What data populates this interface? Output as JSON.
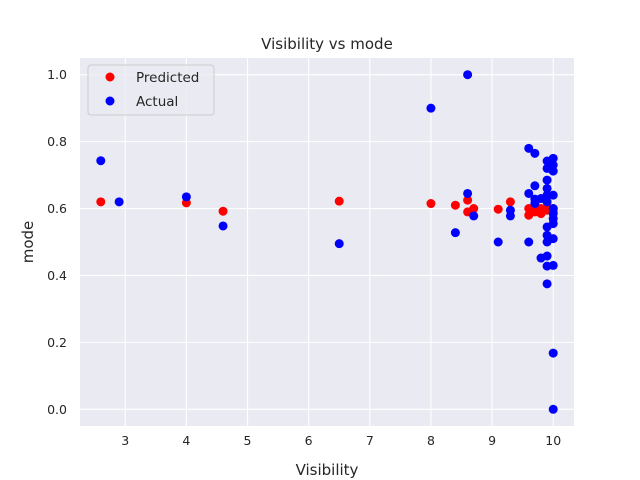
{
  "chart_data": {
    "type": "scatter",
    "title": "Visibility vs mode",
    "xlabel": "Visibility",
    "ylabel": "mode",
    "xlim": [
      2.26,
      10.34
    ],
    "ylim": [
      -0.05,
      1.05
    ],
    "xticks": [
      3,
      4,
      5,
      6,
      7,
      8,
      9,
      10
    ],
    "yticks": [
      0.0,
      0.2,
      0.4,
      0.6,
      0.8,
      1.0
    ],
    "xtick_labels": [
      "3",
      "4",
      "5",
      "6",
      "7",
      "8",
      "9",
      "10"
    ],
    "ytick_labels": [
      "0.0",
      "0.2",
      "0.4",
      "0.6",
      "0.8",
      "1.0"
    ],
    "grid": true,
    "legend_position": "top-left",
    "series": [
      {
        "name": "Predicted",
        "color": "#ff0000",
        "points": [
          [
            2.6,
            0.62
          ],
          [
            4.0,
            0.617
          ],
          [
            4.6,
            0.592
          ],
          [
            6.5,
            0.622
          ],
          [
            8.0,
            0.615
          ],
          [
            8.4,
            0.61
          ],
          [
            8.6,
            0.625
          ],
          [
            8.6,
            0.59
          ],
          [
            8.7,
            0.6
          ],
          [
            9.1,
            0.598
          ],
          [
            9.3,
            0.62
          ],
          [
            9.6,
            0.6
          ],
          [
            9.6,
            0.58
          ],
          [
            9.7,
            0.605
          ],
          [
            9.7,
            0.59
          ],
          [
            9.8,
            0.6
          ],
          [
            9.8,
            0.585
          ],
          [
            9.9,
            0.605
          ],
          [
            9.9,
            0.595
          ],
          [
            10.0,
            0.6
          ],
          [
            10.0,
            0.59
          ]
        ]
      },
      {
        "name": "Actual",
        "color": "#0000ff",
        "points": [
          [
            2.6,
            0.743
          ],
          [
            2.9,
            0.62
          ],
          [
            4.0,
            0.635
          ],
          [
            4.6,
            0.548
          ],
          [
            6.5,
            0.495
          ],
          [
            8.0,
            0.9
          ],
          [
            8.4,
            0.528
          ],
          [
            8.6,
            1.0
          ],
          [
            8.6,
            0.645
          ],
          [
            8.7,
            0.578
          ],
          [
            9.1,
            0.5
          ],
          [
            9.3,
            0.595
          ],
          [
            9.3,
            0.578
          ],
          [
            9.6,
            0.78
          ],
          [
            9.6,
            0.645
          ],
          [
            9.6,
            0.5
          ],
          [
            9.7,
            0.765
          ],
          [
            9.7,
            0.668
          ],
          [
            9.7,
            0.628
          ],
          [
            9.7,
            0.615
          ],
          [
            9.8,
            0.452
          ],
          [
            9.8,
            0.63
          ],
          [
            9.9,
            0.742
          ],
          [
            9.9,
            0.72
          ],
          [
            9.9,
            0.685
          ],
          [
            9.9,
            0.66
          ],
          [
            9.9,
            0.64
          ],
          [
            9.9,
            0.62
          ],
          [
            9.9,
            0.545
          ],
          [
            9.9,
            0.52
          ],
          [
            9.9,
            0.5
          ],
          [
            9.9,
            0.458
          ],
          [
            9.9,
            0.428
          ],
          [
            9.9,
            0.375
          ],
          [
            10.0,
            0.75
          ],
          [
            10.0,
            0.73
          ],
          [
            10.0,
            0.712
          ],
          [
            10.0,
            0.64
          ],
          [
            10.0,
            0.6
          ],
          [
            10.0,
            0.585
          ],
          [
            10.0,
            0.57
          ],
          [
            10.0,
            0.555
          ],
          [
            10.0,
            0.51
          ],
          [
            10.0,
            0.43
          ],
          [
            10.0,
            0.168
          ],
          [
            10.0,
            0.0
          ]
        ]
      }
    ]
  }
}
